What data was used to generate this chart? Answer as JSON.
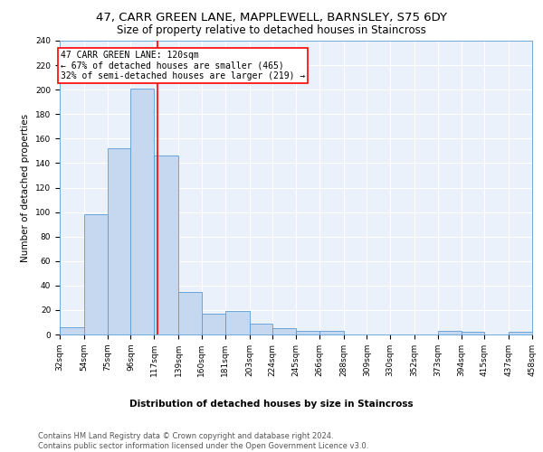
{
  "title": "47, CARR GREEN LANE, MAPPLEWELL, BARNSLEY, S75 6DY",
  "subtitle": "Size of property relative to detached houses in Staincross",
  "xlabel": "Distribution of detached houses by size in Staincross",
  "ylabel": "Number of detached properties",
  "bar_edges": [
    32,
    54,
    75,
    96,
    117,
    139,
    160,
    181,
    203,
    224,
    245,
    266,
    288,
    309,
    330,
    352,
    373,
    394,
    415,
    437,
    458
  ],
  "bar_heights": [
    6,
    98,
    152,
    201,
    146,
    35,
    17,
    19,
    9,
    5,
    3,
    3,
    0,
    0,
    0,
    0,
    3,
    2,
    0,
    2
  ],
  "bar_color": "#c5d8f0",
  "bar_edge_color": "#5b9bd5",
  "property_line_x": 120,
  "property_line_color": "red",
  "annotation_text": "47 CARR GREEN LANE: 120sqm\n← 67% of detached houses are smaller (465)\n32% of semi-detached houses are larger (219) →",
  "annotation_box_color": "white",
  "annotation_box_edge_color": "red",
  "tick_labels": [
    "32sqm",
    "54sqm",
    "75sqm",
    "96sqm",
    "117sqm",
    "139sqm",
    "160sqm",
    "181sqm",
    "203sqm",
    "224sqm",
    "245sqm",
    "266sqm",
    "288sqm",
    "309sqm",
    "330sqm",
    "352sqm",
    "373sqm",
    "394sqm",
    "415sqm",
    "437sqm",
    "458sqm"
  ],
  "ylim": [
    0,
    240
  ],
  "yticks": [
    0,
    20,
    40,
    60,
    80,
    100,
    120,
    140,
    160,
    180,
    200,
    220,
    240
  ],
  "footer_text": "Contains HM Land Registry data © Crown copyright and database right 2024.\nContains public sector information licensed under the Open Government Licence v3.0.",
  "background_color": "#eaf1fb",
  "grid_color": "white",
  "title_fontsize": 9.5,
  "subtitle_fontsize": 8.5,
  "axis_label_fontsize": 7.5,
  "tick_fontsize": 6.5,
  "annotation_fontsize": 7.0,
  "footer_fontsize": 6.0,
  "ylabel_fontsize": 7.5
}
